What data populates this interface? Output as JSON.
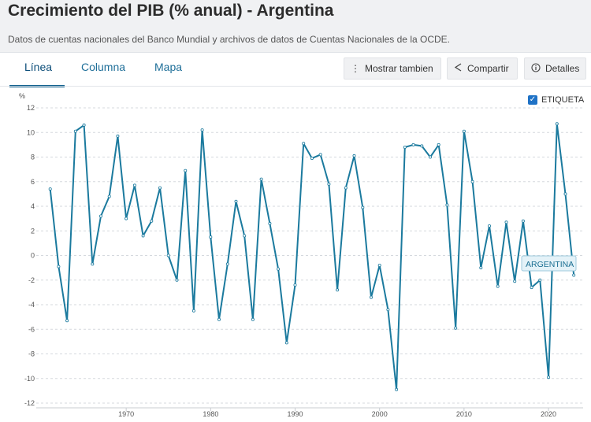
{
  "page": {
    "title": "Crecimiento del PIB (% anual) - Argentina",
    "subtitle": "Datos de cuentas nacionales del Banco Mundial y archivos de datos de Cuentas Nacionales de la OCDE."
  },
  "tabs": [
    {
      "label": "Línea",
      "active": true
    },
    {
      "label": "Columna",
      "active": false
    },
    {
      "label": "Mapa",
      "active": false
    }
  ],
  "toolbar": {
    "show_label": "Mostrar tambien",
    "share_label": "Compartir",
    "details_label": "Detalles",
    "show_icon": "vertical-dots-icon",
    "share_icon": "share-icon",
    "details_icon": "info-icon"
  },
  "legend": {
    "checkbox_label": "ETIQUETA",
    "checked": true
  },
  "colors": {
    "line": "#1b7a9e",
    "accent": "#1f72c6"
  },
  "chart_data": {
    "type": "line",
    "title": "",
    "ylabel": "%",
    "xlabel": "",
    "ylim": [
      -12,
      12
    ],
    "xlim": [
      1960,
      2024
    ],
    "yticks": [
      12,
      10,
      8,
      6,
      4,
      2,
      0,
      -2,
      -4,
      -6,
      -8,
      -10,
      -12
    ],
    "xticks": [
      1970,
      1980,
      1990,
      2000,
      2010,
      2020
    ],
    "grid": true,
    "series": [
      {
        "name": "ARGENTINA",
        "x": [
          1961,
          1962,
          1963,
          1964,
          1965,
          1966,
          1967,
          1968,
          1969,
          1970,
          1971,
          1972,
          1973,
          1974,
          1975,
          1976,
          1977,
          1978,
          1979,
          1980,
          1981,
          1982,
          1983,
          1984,
          1985,
          1986,
          1987,
          1988,
          1989,
          1990,
          1991,
          1992,
          1993,
          1994,
          1995,
          1996,
          1997,
          1998,
          1999,
          2000,
          2001,
          2002,
          2003,
          2004,
          2005,
          2006,
          2007,
          2008,
          2009,
          2010,
          2011,
          2012,
          2013,
          2014,
          2015,
          2016,
          2017,
          2018,
          2019,
          2020,
          2021,
          2022,
          2023
        ],
        "values": [
          5.4,
          -0.9,
          -5.3,
          10.1,
          10.6,
          -0.7,
          3.2,
          4.8,
          9.7,
          3.0,
          5.7,
          1.6,
          2.8,
          5.5,
          0.0,
          -2.0,
          6.9,
          -4.5,
          10.2,
          1.5,
          -5.2,
          -0.7,
          4.4,
          1.6,
          -5.2,
          6.2,
          2.6,
          -1.1,
          -7.1,
          -2.4,
          9.1,
          7.9,
          8.2,
          5.8,
          -2.8,
          5.5,
          8.1,
          3.9,
          -3.4,
          -0.8,
          -4.4,
          -10.9,
          8.8,
          9.0,
          8.9,
          8.0,
          9.0,
          4.1,
          -5.9,
          10.1,
          6.0,
          -1.0,
          2.4,
          -2.5,
          2.7,
          -2.1,
          2.8,
          -2.6,
          -2.0,
          -9.9,
          10.7,
          5.0,
          -1.6
        ]
      }
    ],
    "series_label": "ARGENTINA"
  }
}
